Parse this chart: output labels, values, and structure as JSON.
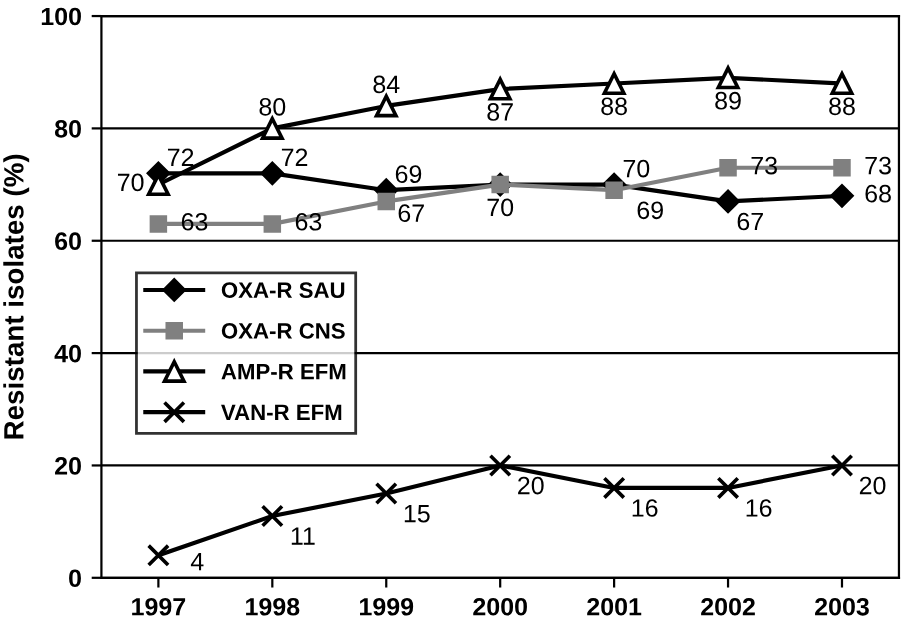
{
  "chart_data": {
    "type": "line",
    "ylabel": "Resistant isolates (%)",
    "categories": [
      "1997",
      "1998",
      "1999",
      "2000",
      "2001",
      "2002",
      "2003"
    ],
    "ylim": [
      0,
      100
    ],
    "yticks": [
      0,
      20,
      40,
      60,
      80,
      100
    ],
    "grid": "y",
    "legend": "center left",
    "series": [
      {
        "name": "OXA-R SAU",
        "color": "#000000",
        "marker": "diamond",
        "values": [
          72,
          72,
          69,
          70,
          70,
          67,
          68
        ],
        "value_labels": [
          "72",
          "72",
          "69",
          null,
          "70",
          "67",
          "68"
        ]
      },
      {
        "name": "OXA-R CNS",
        "color": "#808080",
        "marker": "square",
        "values": [
          63,
          63,
          67,
          70,
          69,
          73,
          73
        ],
        "value_labels": [
          "63",
          "63",
          "67",
          "70",
          "69",
          "73",
          "73"
        ]
      },
      {
        "name": "AMP-R EFM",
        "color": "#000000",
        "marker": "triangle",
        "values": [
          70,
          80,
          84,
          87,
          88,
          89,
          88
        ],
        "value_labels": [
          "70",
          "80",
          "84",
          "87",
          "88",
          "89",
          "88"
        ]
      },
      {
        "name": "VAN-R EFM",
        "color": "#000000",
        "marker": "cross",
        "values": [
          4,
          11,
          15,
          20,
          16,
          16,
          20
        ],
        "value_labels": [
          "4",
          "11",
          "15",
          "20",
          "16",
          "16",
          "20"
        ]
      }
    ]
  }
}
